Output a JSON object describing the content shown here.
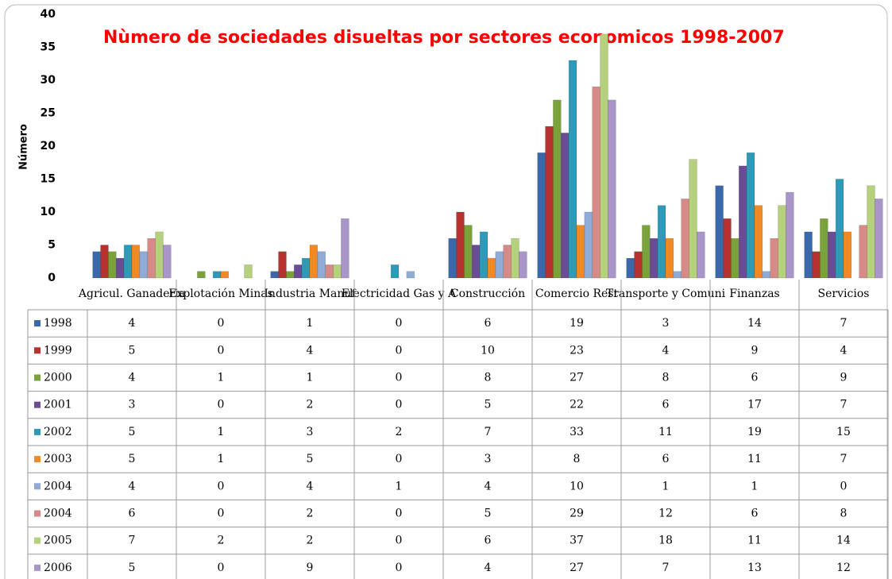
{
  "chart_data": {
    "type": "bar",
    "title": "Nùmero de sociedades disueltas por sectores economicos  1998-2007",
    "y_label": "Número",
    "categories": [
      "Agricul. Ganaderia",
      "Explotación Minas",
      "Industria Manuf",
      "Electricidad Gas y A",
      "Construcción",
      "Comercio Rest",
      "Transporte y Comuni",
      "Finanzas",
      "Servicios"
    ],
    "series": [
      {
        "name": "1998",
        "color": "#3a68a8",
        "values": [
          4,
          0,
          1,
          0,
          6,
          19,
          3,
          14,
          7
        ]
      },
      {
        "name": "1999",
        "color": "#b8312f",
        "values": [
          5,
          0,
          4,
          0,
          10,
          23,
          4,
          9,
          4
        ]
      },
      {
        "name": "2000",
        "color": "#7aa23a",
        "values": [
          4,
          1,
          1,
          0,
          8,
          27,
          8,
          6,
          9
        ]
      },
      {
        "name": "2001",
        "color": "#6a4c96",
        "values": [
          3,
          0,
          2,
          0,
          5,
          22,
          6,
          17,
          7
        ]
      },
      {
        "name": "2002",
        "color": "#2e9ab8",
        "values": [
          5,
          1,
          3,
          2,
          7,
          33,
          11,
          19,
          15
        ]
      },
      {
        "name": "2003",
        "color": "#f08a24",
        "values": [
          5,
          1,
          5,
          0,
          3,
          8,
          6,
          11,
          7
        ]
      },
      {
        "name": "2004",
        "color": "#8fabd6",
        "values": [
          4,
          0,
          4,
          1,
          4,
          10,
          1,
          1,
          0
        ]
      },
      {
        "name": "2004",
        "color": "#d58a88",
        "values": [
          6,
          0,
          2,
          0,
          5,
          29,
          12,
          6,
          8
        ]
      },
      {
        "name": "2005",
        "color": "#b5d17e",
        "values": [
          7,
          2,
          2,
          0,
          6,
          37,
          18,
          11,
          14
        ]
      },
      {
        "name": "2006",
        "color": "#a896c8",
        "values": [
          5,
          0,
          9,
          0,
          4,
          27,
          7,
          13,
          12
        ]
      }
    ],
    "ylim": [
      0,
      40
    ],
    "yticks": [
      0,
      5,
      10,
      15,
      20,
      25,
      30,
      35,
      40
    ]
  }
}
